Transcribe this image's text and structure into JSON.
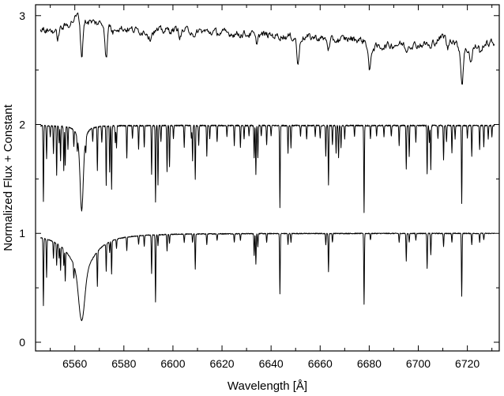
{
  "chart_data": {
    "type": "line",
    "title": "",
    "xlabel": "Wavelength [Å]",
    "ylabel": "Normalized Flux + Constant",
    "xlim": [
      6544,
      6733
    ],
    "ylim": [
      -0.08,
      3.1
    ],
    "xticks": [
      6560,
      6580,
      6600,
      6620,
      6640,
      6660,
      6680,
      6700,
      6720
    ],
    "yticks": [
      0,
      1,
      2,
      3
    ],
    "x_minor_step": 10,
    "y_minor_step": 0.5,
    "grid": false,
    "legend": "none",
    "color": "#000000",
    "series": [
      {
        "offset": 0,
        "xrange": [
          6546,
          6731
        ],
        "continuum": 1.0,
        "broad_lines": [
          {
            "center": 6562.8,
            "depth": 0.8,
            "core_width": 1.2,
            "wing_width": 6.0
          }
        ],
        "lines": [
          [
            6547.2,
            0.62
          ],
          [
            6548.5,
            0.35
          ],
          [
            6551.3,
            0.15
          ],
          [
            6552.6,
            0.2
          ],
          [
            6553.6,
            0.12
          ],
          [
            6554.2,
            0.22
          ],
          [
            6555.5,
            0.15
          ],
          [
            6556.1,
            0.28
          ],
          [
            6559.6,
            0.12
          ],
          [
            6569.2,
            0.32
          ],
          [
            6572.8,
            0.25
          ],
          [
            6574.2,
            0.1
          ],
          [
            6575.0,
            0.3
          ],
          [
            6577.0,
            0.08
          ],
          [
            6581.2,
            0.12
          ],
          [
            6586.0,
            0.08
          ],
          [
            6588.3,
            0.1
          ],
          [
            6591.3,
            0.35
          ],
          [
            6592.9,
            0.62
          ],
          [
            6593.9,
            0.1
          ],
          [
            6597.6,
            0.15
          ],
          [
            6598.6,
            0.08
          ],
          [
            6604.6,
            0.08
          ],
          [
            6608.0,
            0.08
          ],
          [
            6609.1,
            0.32
          ],
          [
            6613.8,
            0.1
          ],
          [
            6618.0,
            0.06
          ],
          [
            6625.0,
            0.08
          ],
          [
            6627.5,
            0.06
          ],
          [
            6633.1,
            0.2
          ],
          [
            6633.8,
            0.28
          ],
          [
            6634.6,
            0.12
          ],
          [
            6638.2,
            0.08
          ],
          [
            6643.6,
            0.55
          ],
          [
            6646.9,
            0.1
          ],
          [
            6648.1,
            0.08
          ],
          [
            6662.3,
            0.1
          ],
          [
            6663.4,
            0.35
          ],
          [
            6665.0,
            0.08
          ],
          [
            6677.9,
            0.65
          ],
          [
            6680.5,
            0.06
          ],
          [
            6692.2,
            0.08
          ],
          [
            6695.1,
            0.25
          ],
          [
            6696.3,
            0.08
          ],
          [
            6699.0,
            0.06
          ],
          [
            6703.6,
            0.32
          ],
          [
            6705.1,
            0.2
          ],
          [
            6710.3,
            0.12
          ],
          [
            6713.7,
            0.08
          ],
          [
            6717.7,
            0.58
          ],
          [
            6721.8,
            0.1
          ],
          [
            6725.0,
            0.08
          ],
          [
            6726.7,
            0.06
          ]
        ],
        "noise": 0.004
      },
      {
        "offset": 1,
        "xrange": [
          6546,
          6731
        ],
        "continuum": 0.99,
        "broad_lines": [
          {
            "center": 6562.8,
            "depth": 0.78,
            "core_width": 0.6,
            "wing_width": 1.2
          }
        ],
        "lines": [
          [
            6547.2,
            0.7
          ],
          [
            6548.5,
            0.3
          ],
          [
            6550.0,
            0.1
          ],
          [
            6551.3,
            0.25
          ],
          [
            6552.6,
            0.45
          ],
          [
            6553.6,
            0.15
          ],
          [
            6554.2,
            0.32
          ],
          [
            6555.5,
            0.4
          ],
          [
            6556.1,
            0.35
          ],
          [
            6557.2,
            0.2
          ],
          [
            6559.6,
            0.15
          ],
          [
            6561.0,
            0.12
          ],
          [
            6564.5,
            0.12
          ],
          [
            6567.3,
            0.12
          ],
          [
            6569.2,
            0.4
          ],
          [
            6571.0,
            0.15
          ],
          [
            6572.8,
            0.55
          ],
          [
            6574.2,
            0.42
          ],
          [
            6575.0,
            0.58
          ],
          [
            6576.5,
            0.15
          ],
          [
            6577.0,
            0.2
          ],
          [
            6581.2,
            0.3
          ],
          [
            6583.5,
            0.12
          ],
          [
            6586.0,
            0.22
          ],
          [
            6588.3,
            0.2
          ],
          [
            6591.3,
            0.45
          ],
          [
            6592.9,
            0.7
          ],
          [
            6593.9,
            0.55
          ],
          [
            6595.1,
            0.15
          ],
          [
            6597.6,
            0.42
          ],
          [
            6598.6,
            0.38
          ],
          [
            6600.2,
            0.12
          ],
          [
            6604.6,
            0.2
          ],
          [
            6607.5,
            0.12
          ],
          [
            6608.0,
            0.32
          ],
          [
            6609.1,
            0.5
          ],
          [
            6610.5,
            0.18
          ],
          [
            6613.8,
            0.28
          ],
          [
            6615.0,
            0.12
          ],
          [
            6618.0,
            0.15
          ],
          [
            6622.0,
            0.1
          ],
          [
            6625.0,
            0.18
          ],
          [
            6627.5,
            0.2
          ],
          [
            6629.0,
            0.12
          ],
          [
            6631.0,
            0.1
          ],
          [
            6633.1,
            0.3
          ],
          [
            6633.8,
            0.45
          ],
          [
            6634.6,
            0.3
          ],
          [
            6636.0,
            0.1
          ],
          [
            6638.2,
            0.18
          ],
          [
            6640.0,
            0.1
          ],
          [
            6643.6,
            0.75
          ],
          [
            6646.9,
            0.25
          ],
          [
            6648.1,
            0.2
          ],
          [
            6652.0,
            0.1
          ],
          [
            6654.5,
            0.12
          ],
          [
            6658.0,
            0.1
          ],
          [
            6660.0,
            0.12
          ],
          [
            6662.3,
            0.28
          ],
          [
            6663.4,
            0.55
          ],
          [
            6665.0,
            0.18
          ],
          [
            6666.5,
            0.25
          ],
          [
            6667.5,
            0.3
          ],
          [
            6668.5,
            0.2
          ],
          [
            6670.0,
            0.12
          ],
          [
            6674.0,
            0.1
          ],
          [
            6677.9,
            0.8
          ],
          [
            6680.5,
            0.12
          ],
          [
            6683.0,
            0.1
          ],
          [
            6686.0,
            0.1
          ],
          [
            6689.0,
            0.1
          ],
          [
            6692.2,
            0.18
          ],
          [
            6695.1,
            0.4
          ],
          [
            6696.3,
            0.28
          ],
          [
            6699.0,
            0.15
          ],
          [
            6703.6,
            0.45
          ],
          [
            6704.5,
            0.15
          ],
          [
            6705.1,
            0.4
          ],
          [
            6708.0,
            0.12
          ],
          [
            6710.3,
            0.32
          ],
          [
            6711.5,
            0.15
          ],
          [
            6713.7,
            0.25
          ],
          [
            6715.0,
            0.12
          ],
          [
            6717.7,
            0.72
          ],
          [
            6720.0,
            0.12
          ],
          [
            6721.8,
            0.28
          ],
          [
            6725.0,
            0.22
          ],
          [
            6726.7,
            0.2
          ],
          [
            6728.5,
            0.12
          ],
          [
            6730.0,
            0.1
          ]
        ],
        "noise": 0.006
      },
      {
        "offset": 2,
        "xrange": [
          6546,
          6731
        ],
        "baseline": [
          [
            6546,
            0.87
          ],
          [
            6552,
            0.86
          ],
          [
            6556,
            0.9
          ],
          [
            6559,
            0.95
          ],
          [
            6561,
            1.0
          ],
          [
            6564,
            0.95
          ],
          [
            6570,
            0.93
          ],
          [
            6580,
            0.88
          ],
          [
            6590,
            0.85
          ],
          [
            6600,
            0.87
          ],
          [
            6610,
            0.86
          ],
          [
            6620,
            0.84
          ],
          [
            6630,
            0.83
          ],
          [
            6640,
            0.82
          ],
          [
            6650,
            0.8
          ],
          [
            6658,
            0.8
          ],
          [
            6665,
            0.77
          ],
          [
            6672,
            0.79
          ],
          [
            6678,
            0.77
          ],
          [
            6680,
            0.7
          ],
          [
            6686,
            0.72
          ],
          [
            6692,
            0.74
          ],
          [
            6700,
            0.73
          ],
          [
            6706,
            0.75
          ],
          [
            6710,
            0.81
          ],
          [
            6714,
            0.78
          ],
          [
            6718,
            0.67
          ],
          [
            6722,
            0.7
          ],
          [
            6727,
            0.74
          ],
          [
            6731,
            0.75
          ]
        ],
        "lines": [
          [
            6562.8,
            0.35
          ],
          [
            6572.8,
            0.3
          ],
          [
            6553.0,
            0.08
          ],
          [
            6575.5,
            0.06
          ],
          [
            6590.5,
            0.06
          ],
          [
            6603.0,
            0.06
          ],
          [
            6609.0,
            0.08
          ],
          [
            6634.0,
            0.08
          ],
          [
            6651.0,
            0.26
          ],
          [
            6663.5,
            0.08
          ],
          [
            6680.2,
            0.22
          ],
          [
            6695.0,
            0.06
          ],
          [
            6705.0,
            0.06
          ],
          [
            6717.8,
            0.3
          ],
          [
            6712.0,
            0.1
          ],
          [
            6721.5,
            0.12
          ],
          [
            6725.5,
            0.08
          ]
        ],
        "noise": 0.028
      }
    ]
  }
}
